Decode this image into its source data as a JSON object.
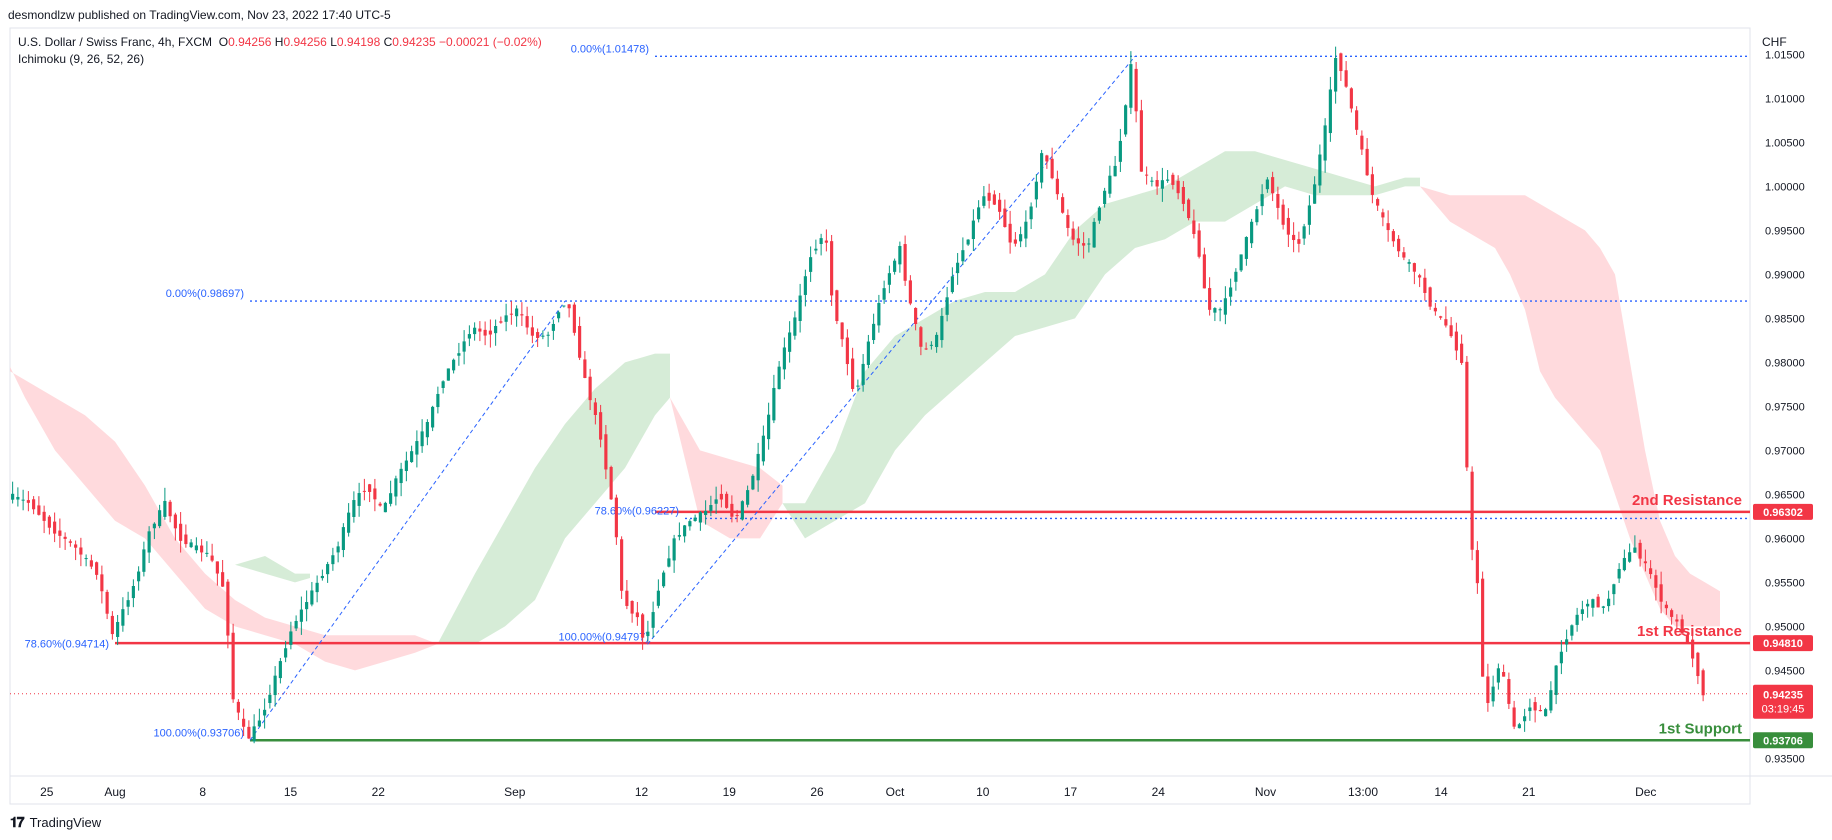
{
  "publisher": "desmondlzw published on TradingView.com, Nov 23, 2022 17:40 UTC-5",
  "symbol": "U.S. Dollar / Swiss Franc, 4h, FXCM",
  "ohlc": {
    "o": "0.94256",
    "h": "0.94256",
    "l": "0.94198",
    "c": "0.94235",
    "change": "−0.00021 (−0.02%)"
  },
  "indicator": "Ichimoku (9, 26, 52, 26)",
  "currency": "CHF",
  "brand": "TradingView",
  "colors": {
    "up": "#089981",
    "down": "#f23645",
    "resistance": "#f23645",
    "support": "#388e3c",
    "fib": "#2962ff",
    "cloud_bull": "#c8e6c9",
    "cloud_bear": "#ffcdd2"
  },
  "chart_data": {
    "type": "candlestick",
    "symbol": "USDCHF",
    "timeframe": "4h",
    "y_ticks": [
      "1.01500",
      "1.01000",
      "1.00500",
      "1.00000",
      "0.99500",
      "0.99000",
      "0.98500",
      "0.98000",
      "0.97500",
      "0.97000",
      "0.96500",
      "0.96000",
      "0.95500",
      "0.95000",
      "0.94500",
      "0.94000",
      "0.93500"
    ],
    "ylim": [
      0.933,
      1.018
    ],
    "x_ticks": [
      "25",
      "Aug",
      "8",
      "15",
      "22",
      "Sep",
      "12",
      "19",
      "26",
      "Oct",
      "10",
      "17",
      "24",
      "Nov",
      "13:00",
      "14",
      "21",
      "Dec"
    ],
    "last_price": "0.94235",
    "countdown": "03:19:45",
    "levels": [
      {
        "label": "2nd Resistance",
        "value": 0.96302,
        "value_text": "0.96302",
        "color": "#f23645"
      },
      {
        "label": "1st Resistance",
        "value": 0.9481,
        "value_text": "0.94810",
        "color": "#f23645"
      },
      {
        "label": "1st Support",
        "value": 0.93706,
        "value_text": "0.93706",
        "color": "#388e3c"
      }
    ],
    "fibs": [
      {
        "label": "0.00%(1.01478)",
        "value": 1.01478
      },
      {
        "label": "0.00%(0.98697)",
        "value": 0.98697
      },
      {
        "label": "78.60%(0.96227)",
        "value": 0.96227
      },
      {
        "label": "78.60%(0.94714)",
        "value": 0.94714
      },
      {
        "label": "100.00%(0.94797)",
        "value": 0.94797
      },
      {
        "label": "100.00%(0.93706)",
        "value": 0.93706
      }
    ],
    "price_path": [
      [
        0,
        0.965
      ],
      [
        3,
        0.964
      ],
      [
        6,
        0.961
      ],
      [
        9,
        0.959
      ],
      [
        12,
        0.956
      ],
      [
        14,
        0.949
      ],
      [
        17,
        0.955
      ],
      [
        19,
        0.961
      ],
      [
        21,
        0.964
      ],
      [
        23,
        0.96
      ],
      [
        25,
        0.959
      ],
      [
        27,
        0.958
      ],
      [
        29,
        0.954
      ],
      [
        30,
        0.942
      ],
      [
        32,
        0.9371
      ],
      [
        34,
        0.94
      ],
      [
        36,
        0.945
      ],
      [
        38,
        0.95
      ],
      [
        40,
        0.953
      ],
      [
        42,
        0.956
      ],
      [
        44,
        0.959
      ],
      [
        46,
        0.964
      ],
      [
        48,
        0.966
      ],
      [
        50,
        0.963
      ],
      [
        52,
        0.967
      ],
      [
        54,
        0.97
      ],
      [
        56,
        0.973
      ],
      [
        58,
        0.978
      ],
      [
        60,
        0.981
      ],
      [
        62,
        0.984
      ],
      [
        64,
        0.983
      ],
      [
        66,
        0.985
      ],
      [
        68,
        0.986
      ],
      [
        70,
        0.983
      ],
      [
        72,
        0.983
      ],
      [
        74,
        0.9869
      ],
      [
        75,
        0.986
      ],
      [
        77,
        0.978
      ],
      [
        79,
        0.972
      ],
      [
        81,
        0.962
      ],
      [
        82,
        0.953
      ],
      [
        84,
        0.951
      ],
      [
        85,
        0.948
      ],
      [
        87,
        0.955
      ],
      [
        89,
        0.96
      ],
      [
        91,
        0.962
      ],
      [
        93,
        0.963
      ],
      [
        95,
        0.965
      ],
      [
        97,
        0.962
      ],
      [
        99,
        0.966
      ],
      [
        101,
        0.972
      ],
      [
        103,
        0.98
      ],
      [
        105,
        0.985
      ],
      [
        107,
        0.992
      ],
      [
        109,
        0.995
      ],
      [
        110,
        0.987
      ],
      [
        112,
        0.98
      ],
      [
        113,
        0.976
      ],
      [
        115,
        0.983
      ],
      [
        117,
        0.989
      ],
      [
        119,
        0.993
      ],
      [
        120,
        0.988
      ],
      [
        122,
        0.981
      ],
      [
        124,
        0.983
      ],
      [
        126,
        0.99
      ],
      [
        128,
        0.994
      ],
      [
        130,
        0.999
      ],
      [
        132,
        0.998
      ],
      [
        134,
        0.993
      ],
      [
        136,
        0.996
      ],
      [
        138,
        1.004
      ],
      [
        139,
        1.002
      ],
      [
        141,
        0.996
      ],
      [
        142,
        0.994
      ],
      [
        144,
        0.993
      ],
      [
        146,
        0.999
      ],
      [
        148,
        1.003
      ],
      [
        150,
        1.0148
      ],
      [
        151,
        1.002
      ],
      [
        153,
        1.0
      ],
      [
        155,
        1.001
      ],
      [
        157,
        0.998
      ],
      [
        159,
        0.992
      ],
      [
        160,
        0.986
      ],
      [
        162,
        0.986
      ],
      [
        164,
        0.991
      ],
      [
        166,
        0.996
      ],
      [
        168,
        1.001
      ],
      [
        170,
        0.996
      ],
      [
        172,
        0.993
      ],
      [
        174,
        0.999
      ],
      [
        176,
        1.008
      ],
      [
        177,
        1.0148
      ],
      [
        178,
        1.013
      ],
      [
        180,
        1.006
      ],
      [
        182,
        0.999
      ],
      [
        184,
        0.995
      ],
      [
        186,
        0.992
      ],
      [
        188,
        0.99
      ],
      [
        190,
        0.986
      ],
      [
        192,
        0.984
      ],
      [
        194,
        0.98
      ],
      [
        195,
        0.96
      ],
      [
        196,
        0.955
      ],
      [
        197,
        0.94
      ],
      [
        199,
        0.946
      ],
      [
        201,
        0.938
      ],
      [
        203,
        0.941
      ],
      [
        205,
        0.94
      ],
      [
        207,
        0.947
      ],
      [
        209,
        0.951
      ],
      [
        211,
        0.953
      ],
      [
        213,
        0.952
      ],
      [
        215,
        0.957
      ],
      [
        217,
        0.959
      ],
      [
        219,
        0.956
      ],
      [
        221,
        0.952
      ],
      [
        223,
        0.95
      ],
      [
        225,
        0.946
      ],
      [
        226,
        0.9424
      ]
    ],
    "cloud_segments": [
      {
        "type": "bear",
        "points": [
          [
            0,
            0.979,
            0.9795
          ],
          [
            2,
            0.978,
            0.976
          ],
          [
            6,
            0.976,
            0.97
          ],
          [
            10,
            0.974,
            0.966
          ],
          [
            14,
            0.971,
            0.962
          ],
          [
            18,
            0.966,
            0.96
          ],
          [
            22,
            0.96,
            0.956
          ],
          [
            26,
            0.956,
            0.952
          ],
          [
            30,
            0.953,
            0.95
          ],
          [
            34,
            0.951,
            0.949
          ],
          [
            38,
            0.95,
            0.948
          ],
          [
            42,
            0.949,
            0.946
          ],
          [
            46,
            0.949,
            0.945
          ],
          [
            50,
            0.949,
            0.946
          ],
          [
            54,
            0.949,
            0.947
          ],
          [
            57,
            0.948,
            0.948
          ]
        ]
      },
      {
        "type": "bull",
        "points": [
          [
            30,
            0.957,
            0.957
          ],
          [
            34,
            0.958,
            0.956
          ],
          [
            38,
            0.956,
            0.955
          ],
          [
            40,
            0.956,
            0.9555
          ]
        ]
      },
      {
        "type": "bull",
        "points": [
          [
            57,
            0.948,
            0.948
          ],
          [
            62,
            0.956,
            0.948
          ],
          [
            66,
            0.962,
            0.95
          ],
          [
            70,
            0.968,
            0.953
          ],
          [
            74,
            0.973,
            0.96
          ],
          [
            78,
            0.977,
            0.964
          ],
          [
            82,
            0.98,
            0.968
          ],
          [
            86,
            0.981,
            0.974
          ],
          [
            88,
            0.981,
            0.976
          ]
        ]
      },
      {
        "type": "bear",
        "points": [
          [
            88,
            0.976,
            0.976
          ],
          [
            92,
            0.97,
            0.962
          ],
          [
            96,
            0.969,
            0.96
          ],
          [
            100,
            0.968,
            0.96
          ],
          [
            103,
            0.966,
            0.964
          ]
        ]
      },
      {
        "type": "bull",
        "points": [
          [
            103,
            0.964,
            0.964
          ],
          [
            106,
            0.964,
            0.96
          ],
          [
            110,
            0.97,
            0.962
          ],
          [
            114,
            0.979,
            0.964
          ],
          [
            118,
            0.983,
            0.97
          ],
          [
            122,
            0.985,
            0.974
          ],
          [
            126,
            0.987,
            0.977
          ],
          [
            130,
            0.988,
            0.98
          ],
          [
            134,
            0.988,
            0.983
          ],
          [
            138,
            0.99,
            0.984
          ],
          [
            142,
            0.995,
            0.985
          ],
          [
            146,
            0.998,
            0.99
          ],
          [
            150,
            0.999,
            0.993
          ],
          [
            154,
            1.0,
            0.994
          ],
          [
            158,
            1.002,
            0.996
          ],
          [
            162,
            1.004,
            0.996
          ],
          [
            166,
            1.004,
            0.998
          ],
          [
            170,
            1.003,
            1.0
          ],
          [
            174,
            1.002,
            0.999
          ],
          [
            178,
            1.001,
            0.999
          ],
          [
            182,
            1.0,
            0.999
          ],
          [
            186,
            1.001,
            1.0
          ],
          [
            188,
            1.001,
            1.0
          ]
        ]
      },
      {
        "type": "bear",
        "points": [
          [
            188,
            1.0,
            1.0
          ],
          [
            192,
            0.999,
            0.996
          ],
          [
            196,
            0.999,
            0.994
          ],
          [
            198,
            0.999,
            0.993
          ],
          [
            200,
            0.999,
            0.99
          ],
          [
            202,
            0.999,
            0.986
          ],
          [
            204,
            0.998,
            0.979
          ],
          [
            206,
            0.997,
            0.976
          ],
          [
            208,
            0.996,
            0.974
          ],
          [
            210,
            0.995,
            0.972
          ],
          [
            212,
            0.993,
            0.97
          ],
          [
            214,
            0.99,
            0.965
          ],
          [
            216,
            0.98,
            0.96
          ],
          [
            218,
            0.97,
            0.956
          ],
          [
            220,
            0.962,
            0.952
          ],
          [
            222,
            0.958,
            0.95
          ],
          [
            224,
            0.956,
            0.95
          ],
          [
            226,
            0.955,
            0.95
          ],
          [
            228,
            0.954,
            0.95
          ]
        ]
      }
    ]
  }
}
